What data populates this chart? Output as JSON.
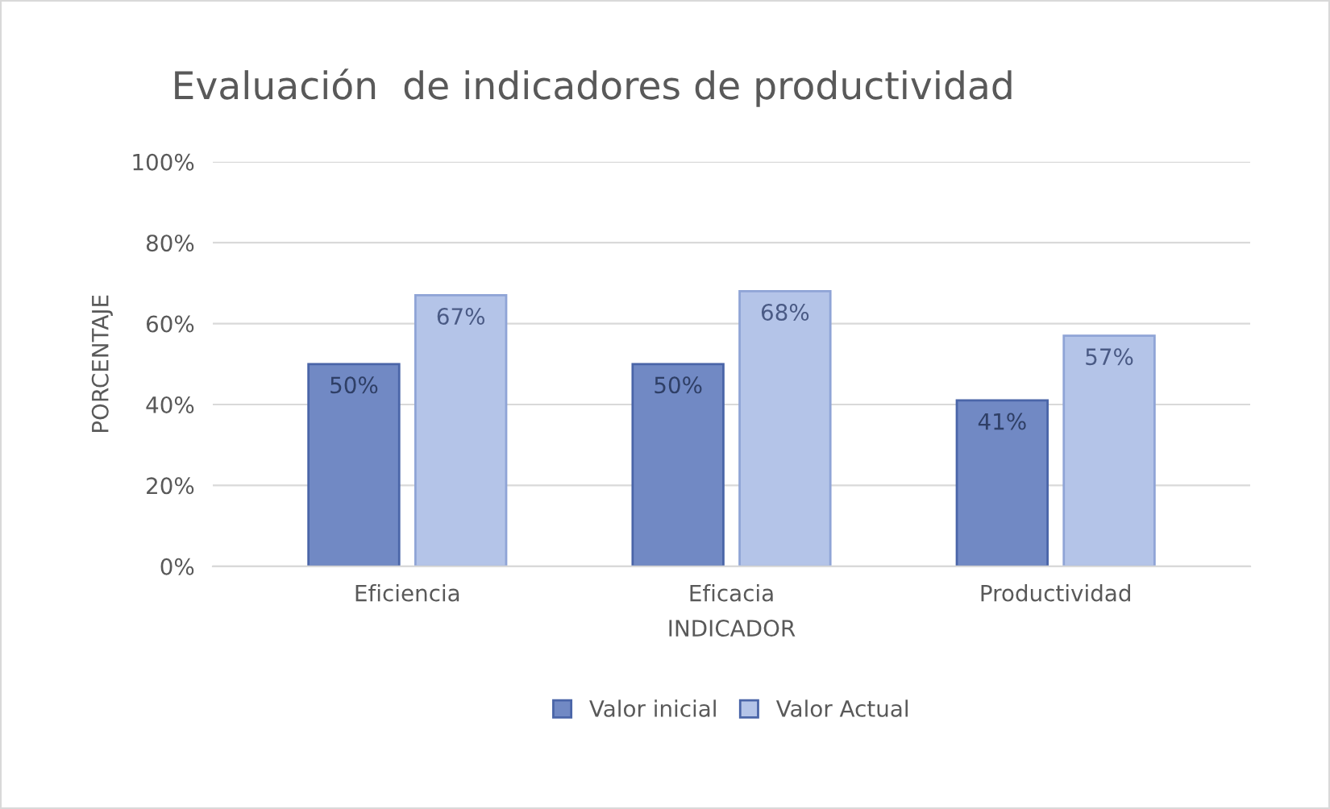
{
  "chart_data": {
    "type": "bar",
    "title": "Evaluación  de indicadores de productividad",
    "xlabel": "INDICADOR",
    "ylabel": "PORCENTAJE",
    "categories": [
      "Eficiencia",
      "Eficacia",
      "Productividad"
    ],
    "series": [
      {
        "name": "Valor inicial",
        "color": "#7189c4",
        "values": [
          50,
          50,
          41
        ],
        "value_labels": [
          "50%",
          "50%",
          "41%"
        ]
      },
      {
        "name": "Valor Actual",
        "color": "#b4c4e8",
        "values": [
          67,
          68,
          57
        ],
        "value_labels": [
          "67%",
          "68%",
          "57%"
        ]
      }
    ],
    "ylim": [
      0,
      100
    ],
    "yticks": [
      {
        "value": 0,
        "label": "0%"
      },
      {
        "value": 20,
        "label": "20%"
      },
      {
        "value": 40,
        "label": "40%"
      },
      {
        "value": 60,
        "label": "60%"
      },
      {
        "value": 80,
        "label": "80%"
      },
      {
        "value": 100,
        "label": "100%"
      }
    ],
    "grid": "y",
    "legend": "bottom"
  }
}
